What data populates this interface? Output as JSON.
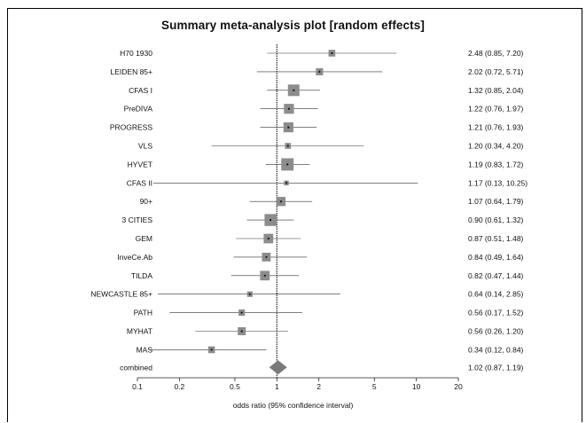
{
  "chart_data": {
    "type": "forest",
    "title": "Summary meta-analysis plot [random effects]",
    "xlabel": "odds ratio (95% confidence interval)",
    "xscale": "log",
    "xlim": [
      0.1,
      20
    ],
    "xticks": [
      0.1,
      0.2,
      0.5,
      1,
      2,
      5,
      10,
      20
    ],
    "xtick_labels": [
      "0.1",
      "0.2",
      "0.5",
      "1",
      "2",
      "5",
      "10",
      "20"
    ],
    "reference_line": 1,
    "studies": [
      {
        "name": "H70 1930",
        "or": 2.48,
        "lo": 0.85,
        "hi": 7.2,
        "label": "2.48 (0.85, 7.20)",
        "weight": 0.4
      },
      {
        "name": "LEIDEN 85+",
        "or": 2.02,
        "lo": 0.72,
        "hi": 5.71,
        "label": "2.02 (0.72, 5.71)",
        "weight": 0.45
      },
      {
        "name": "CFAS I",
        "or": 1.32,
        "lo": 0.85,
        "hi": 2.04,
        "label": "1.32 (0.85, 2.04)",
        "weight": 1.0
      },
      {
        "name": "PreDIVA",
        "or": 1.22,
        "lo": 0.76,
        "hi": 1.97,
        "label": "1.22 (0.76, 1.97)",
        "weight": 0.8
      },
      {
        "name": "PROGRESS",
        "or": 1.21,
        "lo": 0.76,
        "hi": 1.93,
        "label": "1.21 (0.76, 1.93)",
        "weight": 0.8
      },
      {
        "name": "VLS",
        "or": 1.2,
        "lo": 0.34,
        "hi": 4.2,
        "label": "1.20 (0.34, 4.20)",
        "weight": 0.3
      },
      {
        "name": "HYVET",
        "or": 1.19,
        "lo": 0.83,
        "hi": 1.72,
        "label": "1.19 (0.83, 1.72)",
        "weight": 1.1
      },
      {
        "name": "CFAS II",
        "or": 1.17,
        "lo": 0.13,
        "hi": 10.25,
        "label": "1.17 (0.13, 10.25)",
        "weight": 0.15
      },
      {
        "name": "90+",
        "or": 1.07,
        "lo": 0.64,
        "hi": 1.79,
        "label": "1.07 (0.64, 1.79)",
        "weight": 0.7
      },
      {
        "name": "3 CITIES",
        "or": 0.9,
        "lo": 0.61,
        "hi": 1.32,
        "label": "0.90 (0.61, 1.32)",
        "weight": 1.05
      },
      {
        "name": "GEM",
        "or": 0.87,
        "lo": 0.51,
        "hi": 1.48,
        "label": "0.87 (0.51, 1.48)",
        "weight": 0.75
      },
      {
        "name": "InveCe.Ab",
        "or": 0.84,
        "lo": 0.49,
        "hi": 1.64,
        "label": "0.84 (0.49, 1.64)",
        "weight": 0.65
      },
      {
        "name": "TILDA",
        "or": 0.82,
        "lo": 0.47,
        "hi": 1.44,
        "label": "0.82 (0.47, 1.44)",
        "weight": 0.75
      },
      {
        "name": "NEWCASTLE 85+",
        "or": 0.64,
        "lo": 0.14,
        "hi": 2.85,
        "label": "0.64 (0.14, 2.85)",
        "weight": 0.25
      },
      {
        "name": "PATH",
        "or": 0.56,
        "lo": 0.17,
        "hi": 1.52,
        "label": "0.56 (0.17, 1.52)",
        "weight": 0.35
      },
      {
        "name": "MYHAT",
        "or": 0.56,
        "lo": 0.26,
        "hi": 1.2,
        "label": "0.56 (0.26, 1.20)",
        "weight": 0.55
      },
      {
        "name": "MAS",
        "or": 0.34,
        "lo": 0.12,
        "hi": 0.84,
        "label": "0.34 (0.12, 0.84)",
        "weight": 0.4
      }
    ],
    "combined": {
      "name": "combined",
      "or": 1.02,
      "lo": 0.87,
      "hi": 1.19,
      "label": "1.02 (0.87, 1.19)"
    },
    "colors": {
      "box": "#8c8c8c",
      "line": "#333333",
      "diamond": "#7a7a7a",
      "reference": "#555555"
    }
  }
}
